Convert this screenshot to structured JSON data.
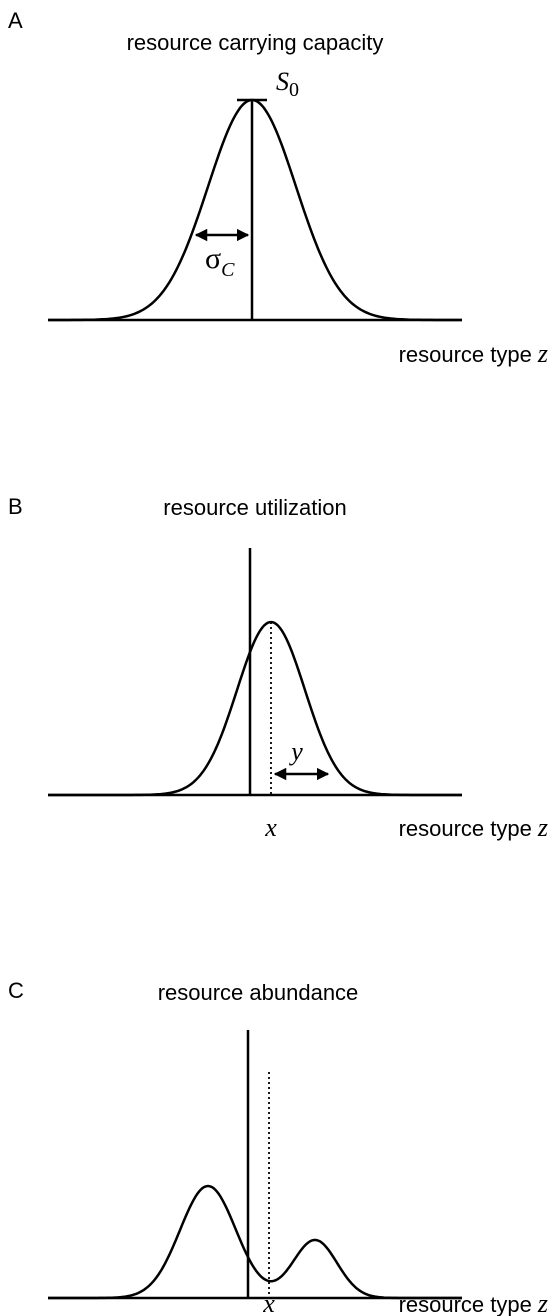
{
  "panels": [
    {
      "letter": "A",
      "title": "resource carrying capacity",
      "axis_label": "resource type",
      "axis_var": "z",
      "peak_label": "S",
      "peak_sub": "0",
      "width_label": "σ",
      "width_sub": "C"
    },
    {
      "letter": "B",
      "title": "resource utilization",
      "axis_label": "resource type",
      "axis_var": "z",
      "position_label": "x",
      "width_label": "y"
    },
    {
      "letter": "C",
      "title": "resource abundance",
      "axis_label": "resource type",
      "axis_var": "z",
      "position_label": "x"
    }
  ]
}
